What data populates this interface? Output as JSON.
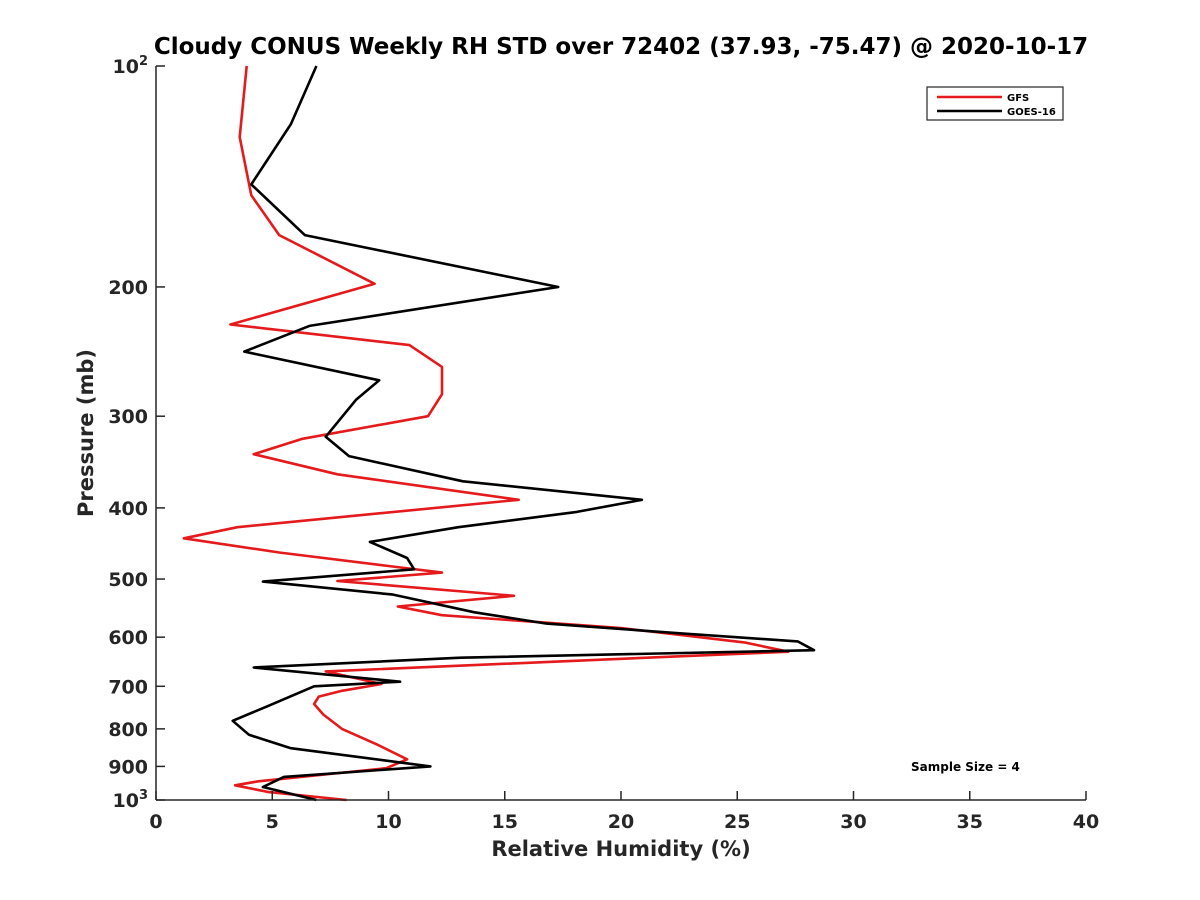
{
  "chart_data": {
    "type": "line",
    "title": "Cloudy CONUS Weekly RH STD over 72402 (37.93, -75.47) @ 2020-10-17",
    "xlabel": "Relative Humidity (%)",
    "ylabel": "Pressure (mb)",
    "xlim": [
      0,
      40
    ],
    "ylim": [
      100,
      1000
    ],
    "y_scale": "log",
    "y_reversed": true,
    "x_ticks": [
      0,
      5,
      10,
      15,
      20,
      25,
      30,
      35,
      40
    ],
    "x_tick_labels": [
      "0",
      "5",
      "10",
      "15",
      "20",
      "25",
      "30",
      "35",
      "40"
    ],
    "y_ticks": [
      100,
      200,
      300,
      400,
      500,
      600,
      700,
      800,
      900,
      1000
    ],
    "y_tick_labels": [
      {
        "base": "10",
        "exp": "2"
      },
      {
        "base": "200",
        "exp": ""
      },
      {
        "base": "300",
        "exp": ""
      },
      {
        "base": "400",
        "exp": ""
      },
      {
        "base": "500",
        "exp": ""
      },
      {
        "base": "600",
        "exp": ""
      },
      {
        "base": "700",
        "exp": ""
      },
      {
        "base": "800",
        "exp": ""
      },
      {
        "base": "900",
        "exp": ""
      },
      {
        "base": "10",
        "exp": "3"
      }
    ],
    "grid": false,
    "legend_position": "top-right",
    "annotation": "Sample Size = 4",
    "series": [
      {
        "name": "GFS",
        "color": "#e41a1c",
        "points": [
          [
            3.9,
            100
          ],
          [
            3.6,
            125
          ],
          [
            4.1,
            150
          ],
          [
            5.3,
            170
          ],
          [
            9.4,
            198
          ],
          [
            3.2,
            225
          ],
          [
            10.9,
            240
          ],
          [
            12.3,
            257
          ],
          [
            12.3,
            280
          ],
          [
            11.7,
            300
          ],
          [
            6.3,
            322
          ],
          [
            4.2,
            338
          ],
          [
            7.8,
            360
          ],
          [
            15.6,
            390
          ],
          [
            3.5,
            425
          ],
          [
            1.2,
            440
          ],
          [
            5.3,
            460
          ],
          [
            10.0,
            480
          ],
          [
            12.3,
            490
          ],
          [
            7.8,
            503
          ],
          [
            15.4,
            527
          ],
          [
            10.4,
            545
          ],
          [
            12.3,
            560
          ],
          [
            20.0,
            583
          ],
          [
            25.3,
            610
          ],
          [
            27.2,
            628
          ],
          [
            7.3,
            668
          ],
          [
            9.7,
            695
          ],
          [
            8.0,
            710
          ],
          [
            7.0,
            723
          ],
          [
            6.8,
            740
          ],
          [
            7.2,
            765
          ],
          [
            8.0,
            800
          ],
          [
            9.5,
            840
          ],
          [
            10.8,
            880
          ],
          [
            9.9,
            905
          ],
          [
            4.4,
            943
          ],
          [
            3.4,
            955
          ],
          [
            4.8,
            975
          ],
          [
            8.2,
            1000
          ]
        ]
      },
      {
        "name": "GOES-16",
        "color": "#000000",
        "points": [
          [
            6.9,
            100
          ],
          [
            5.8,
            120
          ],
          [
            4.1,
            145
          ],
          [
            6.4,
            170
          ],
          [
            17.3,
            200
          ],
          [
            6.6,
            226
          ],
          [
            3.8,
            245
          ],
          [
            9.6,
            268
          ],
          [
            8.6,
            285
          ],
          [
            7.3,
            320
          ],
          [
            8.3,
            340
          ],
          [
            13.2,
            368
          ],
          [
            20.9,
            390
          ],
          [
            18.1,
            405
          ],
          [
            13.0,
            425
          ],
          [
            9.2,
            445
          ],
          [
            10.8,
            468
          ],
          [
            11.1,
            485
          ],
          [
            4.6,
            504
          ],
          [
            10.2,
            525
          ],
          [
            13.7,
            555
          ],
          [
            16.8,
            575
          ],
          [
            22.6,
            593
          ],
          [
            27.6,
            608
          ],
          [
            28.3,
            625
          ],
          [
            13.1,
            640
          ],
          [
            4.2,
            660
          ],
          [
            10.5,
            690
          ],
          [
            6.8,
            700
          ],
          [
            4.8,
            745
          ],
          [
            3.3,
            780
          ],
          [
            4.0,
            815
          ],
          [
            5.8,
            850
          ],
          [
            11.8,
            900
          ],
          [
            5.5,
            930
          ],
          [
            4.6,
            960
          ],
          [
            6.9,
            1000
          ]
        ]
      }
    ]
  }
}
